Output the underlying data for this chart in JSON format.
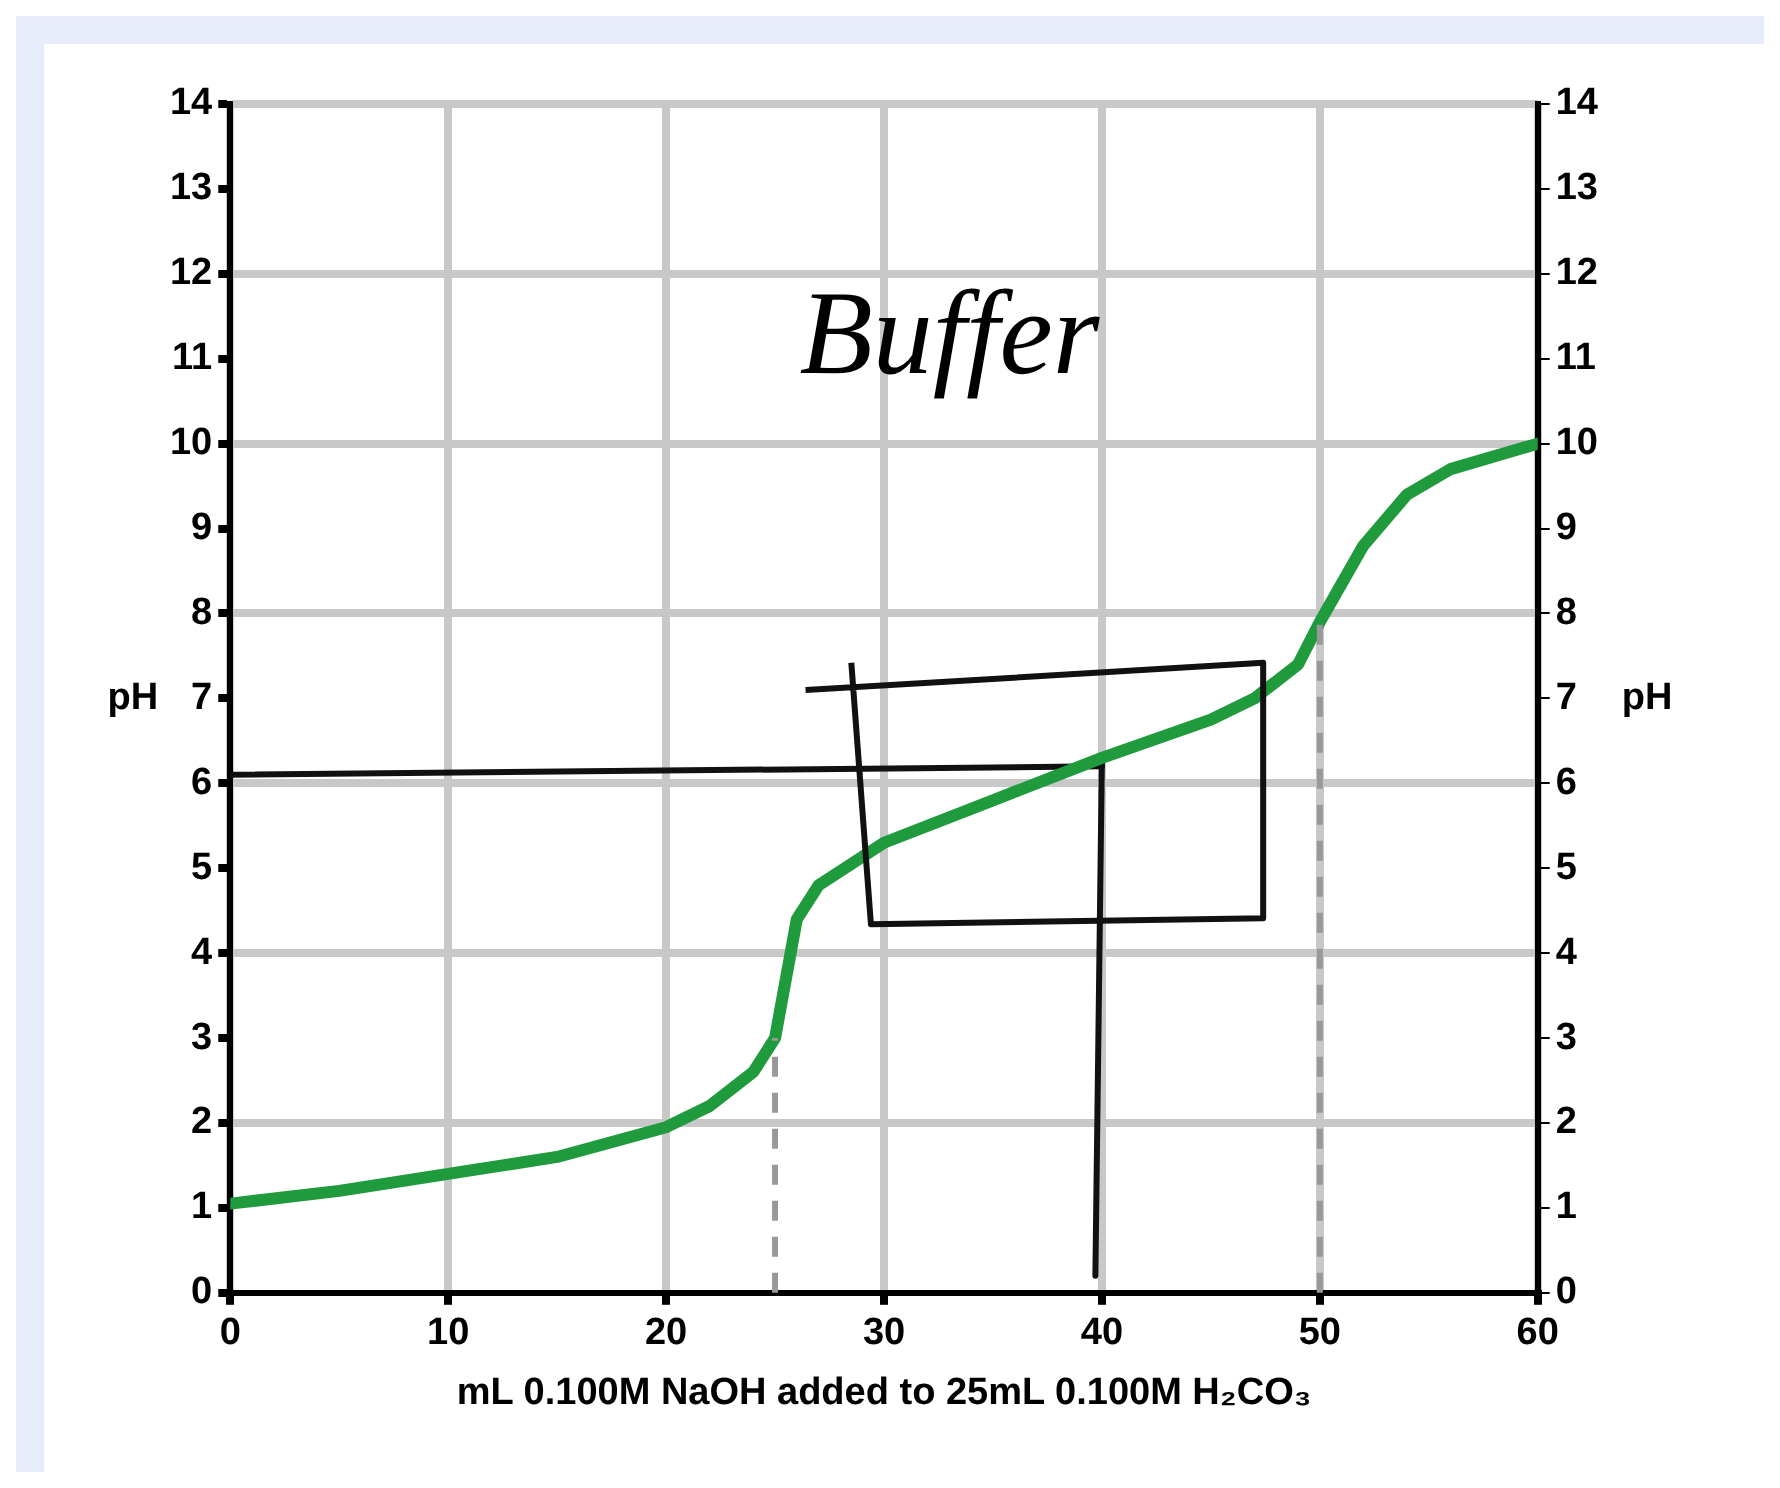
{
  "chart_data": {
    "type": "line",
    "xlabel": "mL 0.100M NaOH added to 25mL 0.100M H₂CO₃",
    "ylabel": "pH",
    "y2label": "pH",
    "annotations": [
      "Buffer"
    ],
    "x": [
      0,
      5,
      10,
      15,
      20,
      22,
      24,
      25,
      25.5,
      26,
      27,
      30,
      35,
      40,
      45,
      47,
      49,
      50,
      52,
      54,
      56,
      60
    ],
    "series": [
      {
        "color": "#1f9a3c",
        "values": [
          1.05,
          1.2,
          1.4,
          1.6,
          1.95,
          2.2,
          2.6,
          3.0,
          3.7,
          4.4,
          4.8,
          5.3,
          5.8,
          6.3,
          6.75,
          7.0,
          7.4,
          7.9,
          8.8,
          9.4,
          9.7,
          10.0
        ]
      },
      {
        "color": "#111111",
        "x": [
          0,
          40
        ],
        "values": [
          6.1,
          6.2
        ]
      },
      {
        "color": "#111111",
        "x": [
          40,
          39.7
        ],
        "values": [
          6.3,
          0.2
        ]
      }
    ],
    "xlim": [
      0,
      60
    ],
    "xticks": [
      0,
      10,
      20,
      30,
      40,
      50,
      60
    ],
    "ylim": [
      0,
      14
    ],
    "yticks": [
      0,
      1,
      2,
      3,
      4,
      5,
      6,
      7,
      8,
      9,
      10,
      11,
      12,
      13,
      14
    ],
    "y2lim": [
      0,
      14
    ],
    "y2ticks": [
      0,
      1,
      2,
      3,
      4,
      5,
      6,
      7,
      8,
      9,
      10,
      11,
      12,
      13,
      14
    ],
    "ref_lines": [
      {
        "axis": "x",
        "value": 25,
        "color": "#999999",
        "line_style": "dashed"
      },
      {
        "axis": "x",
        "value": 50,
        "color": "#999999",
        "line_style": "dashed"
      }
    ],
    "grid": true,
    "marker": "none",
    "line_style": "solid",
    "legend": false
  }
}
